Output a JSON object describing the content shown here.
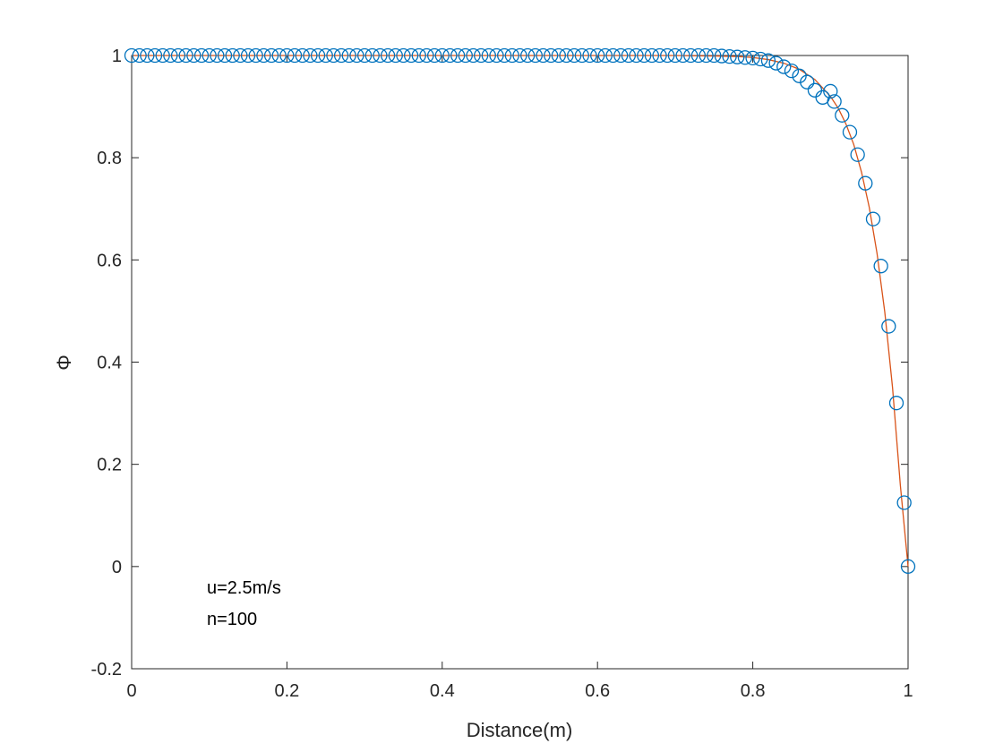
{
  "chart_data": {
    "type": "line",
    "title": "",
    "xlabel": "Distance(m)",
    "ylabel": "Φ",
    "xlim": [
      0,
      1
    ],
    "ylim": [
      -0.2,
      1
    ],
    "xticks": [
      0,
      0.2,
      0.4,
      0.6,
      0.8,
      1
    ],
    "xtick_labels": [
      "0",
      "0.2",
      "0.4",
      "0.6",
      "0.8",
      "1"
    ],
    "yticks": [
      -0.2,
      0,
      0.2,
      0.4,
      0.6,
      0.8,
      1
    ],
    "ytick_labels": [
      "-0.2",
      "0",
      "0.2",
      "0.4",
      "0.6",
      "0.8",
      "1"
    ],
    "grid": false,
    "annotations": [
      "u=2.5m/s",
      "n=100"
    ],
    "series": [
      {
        "style": "markers-circle",
        "color": "#0072BD",
        "x": [
          0,
          0.01,
          0.02,
          0.03,
          0.04,
          0.05,
          0.06,
          0.07,
          0.08,
          0.09,
          0.1,
          0.11,
          0.12,
          0.13,
          0.14,
          0.15,
          0.16,
          0.17,
          0.18,
          0.19,
          0.2,
          0.21,
          0.22,
          0.23,
          0.24,
          0.25,
          0.26,
          0.27,
          0.28,
          0.29,
          0.3,
          0.31,
          0.32,
          0.33,
          0.34,
          0.35,
          0.36,
          0.37,
          0.38,
          0.39,
          0.4,
          0.41,
          0.42,
          0.43,
          0.44,
          0.45,
          0.46,
          0.47,
          0.48,
          0.49,
          0.5,
          0.51,
          0.52,
          0.53,
          0.54,
          0.55,
          0.56,
          0.57,
          0.58,
          0.59,
          0.6,
          0.61,
          0.62,
          0.63,
          0.64,
          0.65,
          0.66,
          0.67,
          0.68,
          0.69,
          0.7,
          0.71,
          0.72,
          0.73,
          0.74,
          0.75,
          0.76,
          0.77,
          0.78,
          0.79,
          0.8,
          0.81,
          0.82,
          0.83,
          0.84,
          0.85,
          0.86,
          0.87,
          0.88,
          0.89,
          0.9,
          0.905,
          0.915,
          0.925,
          0.935,
          0.945,
          0.955,
          0.965,
          0.975,
          0.985,
          0.995,
          1.0
        ],
        "y": [
          1,
          1,
          1,
          1,
          1,
          1,
          1,
          1,
          1,
          1,
          1,
          1,
          1,
          1,
          1,
          1,
          1,
          1,
          1,
          1,
          1,
          1,
          1,
          1,
          1,
          1,
          1,
          1,
          1,
          1,
          1,
          1,
          1,
          1,
          1,
          1,
          1,
          1,
          1,
          1,
          1,
          1,
          1,
          1,
          1,
          1,
          1,
          1,
          1,
          1,
          1,
          1,
          1,
          1,
          1,
          1,
          1,
          1,
          1,
          1,
          1,
          1,
          1,
          1,
          1,
          1,
          1,
          1,
          1,
          1,
          1,
          1,
          1,
          1,
          1,
          1,
          0.999,
          0.998,
          0.997,
          0.996,
          0.995,
          0.993,
          0.99,
          0.985,
          0.978,
          0.97,
          0.96,
          0.948,
          0.932,
          0.918,
          0.93,
          0.91,
          0.883,
          0.85,
          0.806,
          0.75,
          0.68,
          0.588,
          0.47,
          0.32,
          0.125,
          0
        ]
      },
      {
        "style": "line",
        "color": "#D95319",
        "x": [
          0,
          0.1,
          0.2,
          0.3,
          0.4,
          0.5,
          0.6,
          0.7,
          0.75,
          0.78,
          0.8,
          0.82,
          0.84,
          0.86,
          0.88,
          0.9,
          0.91,
          0.92,
          0.93,
          0.94,
          0.95,
          0.96,
          0.97,
          0.98,
          0.99,
          1.0
        ],
        "y": [
          1,
          1,
          1,
          1,
          1,
          1,
          1,
          1,
          0.999,
          0.998,
          0.996,
          0.992,
          0.985,
          0.973,
          0.953,
          0.92,
          0.897,
          0.866,
          0.826,
          0.772,
          0.703,
          0.613,
          0.498,
          0.35,
          0.16,
          0
        ]
      }
    ]
  }
}
